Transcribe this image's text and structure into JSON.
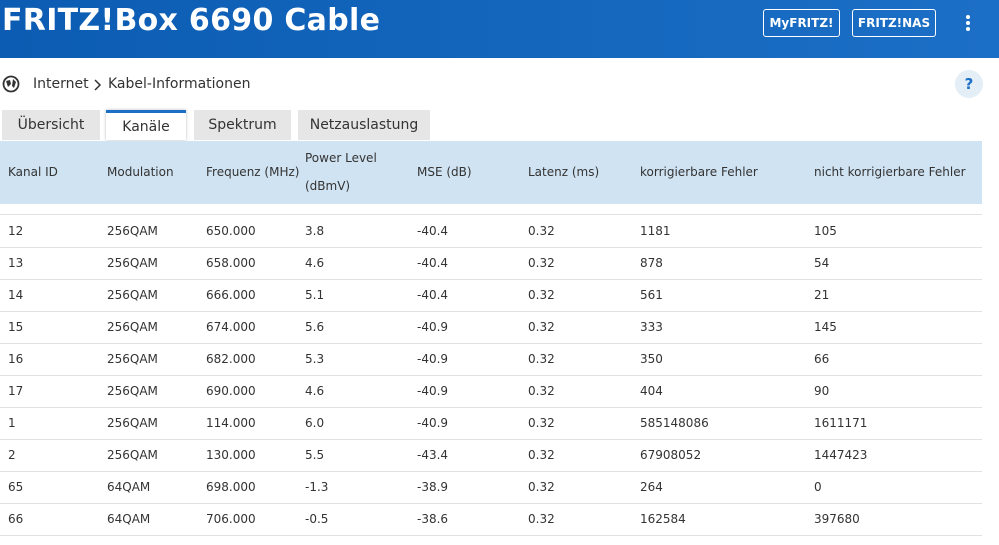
{
  "header": {
    "title": "FRITZ!Box 6690 Cable",
    "buttons": [
      "MyFRITZ!",
      "FRITZ!NAS"
    ]
  },
  "breadcrumb": {
    "items": [
      "Internet",
      "Kabel-Informationen"
    ],
    "help": "?"
  },
  "tabs": {
    "items": [
      "Übersicht",
      "Kanäle",
      "Spektrum",
      "Netzauslastung"
    ],
    "active": 1
  },
  "table": {
    "columns": [
      "Kanal ID",
      "Modulation",
      "Frequenz (MHz)",
      "Power Level (dBmV)",
      "MSE (dB)",
      "Latenz (ms)",
      "korrigierbare Fehler",
      "nicht korrigierbare Fehler"
    ],
    "rows": [
      [
        "12",
        "256QAM",
        "650.000",
        "3.8",
        "-40.4",
        "0.32",
        "1181",
        "105"
      ],
      [
        "13",
        "256QAM",
        "658.000",
        "4.6",
        "-40.4",
        "0.32",
        "878",
        "54"
      ],
      [
        "14",
        "256QAM",
        "666.000",
        "5.1",
        "-40.4",
        "0.32",
        "561",
        "21"
      ],
      [
        "15",
        "256QAM",
        "674.000",
        "5.6",
        "-40.9",
        "0.32",
        "333",
        "145"
      ],
      [
        "16",
        "256QAM",
        "682.000",
        "5.3",
        "-40.9",
        "0.32",
        "350",
        "66"
      ],
      [
        "17",
        "256QAM",
        "690.000",
        "4.6",
        "-40.9",
        "0.32",
        "404",
        "90"
      ],
      [
        "1",
        "256QAM",
        "114.000",
        "6.0",
        "-40.9",
        "0.32",
        "585148086",
        "1611171"
      ],
      [
        "2",
        "256QAM",
        "130.000",
        "5.5",
        "-43.4",
        "0.32",
        "67908052",
        "1447423"
      ],
      [
        "65",
        "64QAM",
        "698.000",
        "-1.3",
        "-38.9",
        "0.32",
        "264",
        "0"
      ],
      [
        "66",
        "64QAM",
        "706.000",
        "-0.5",
        "-38.6",
        "0.32",
        "162584",
        "397680"
      ]
    ]
  }
}
